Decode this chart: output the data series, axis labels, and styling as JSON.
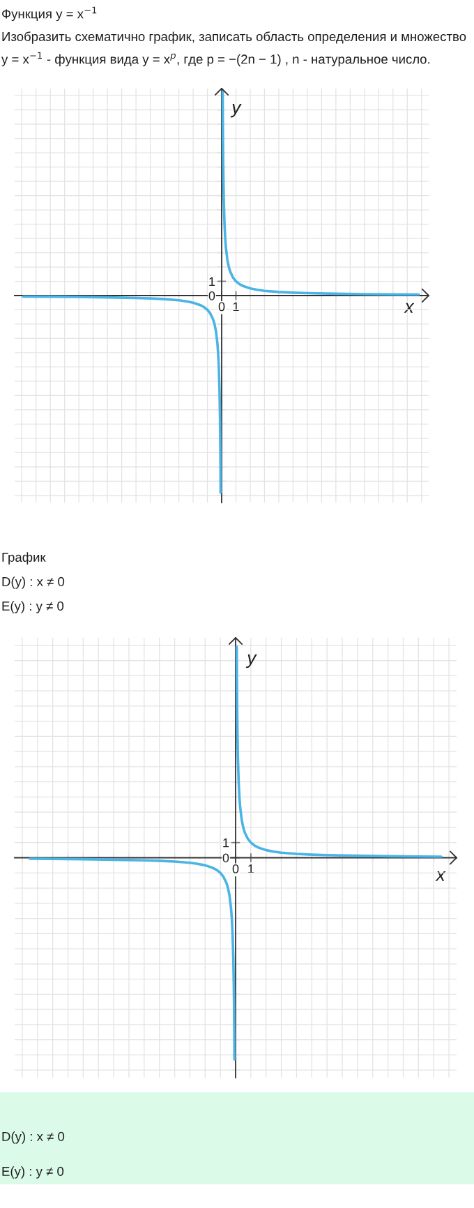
{
  "chart_data": [
    {
      "type": "line",
      "title": "Функция y = x$^{−1}$",
      "subtitle": "Изобразить схематично график, записать область определения и множество\ny = x$^{−1}$ - функция вида y = x$^{p}$, где p = −(2n − 1) , n - натуральное число.",
      "xlabel": "x",
      "ylabel": "y",
      "x": [
        -13.9,
        -12,
        -10,
        -8,
        -6,
        -5,
        -4,
        -3,
        -2.5,
        -2,
        -1.5,
        -1.25,
        -1,
        -0.8,
        -0.6,
        -0.5,
        -0.4,
        -0.3,
        -0.25,
        -0.2,
        -0.15,
        -0.12,
        -0.1,
        -0.09,
        -0.08,
        -0.072,
        0,
        0.07,
        0.08,
        0.09,
        0.1,
        0.12,
        0.15,
        0.2,
        0.25,
        0.3,
        0.4,
        0.5,
        0.6,
        0.8,
        1,
        1.25,
        1.5,
        2,
        2.5,
        3,
        4,
        5,
        6,
        8,
        10,
        12,
        13.8
      ],
      "series": [
        {
          "color": "#4ab4e6",
          "values": [
            -0.07,
            -0.08,
            -0.1,
            -0.13,
            -0.17,
            -0.2,
            -0.25,
            -0.33,
            -0.4,
            -0.5,
            -0.67,
            -0.8,
            -1,
            -1.25,
            -1.67,
            -2,
            -2.5,
            -3.33,
            -4,
            -5,
            -6.67,
            -8.33,
            -10,
            -11.11,
            -12.5,
            -13.8,
            null,
            14.3,
            12.5,
            11.11,
            10,
            8.33,
            6.67,
            5,
            4,
            3.33,
            2.5,
            2,
            1.67,
            1.25,
            1,
            0.8,
            0.67,
            0.5,
            0.4,
            0.33,
            0.25,
            0.2,
            0.17,
            0.13,
            0.1,
            0.08,
            0.07
          ]
        }
      ],
      "xlim": [
        -14.5,
        14.5
      ],
      "ylim": [
        -14.5,
        14.5
      ],
      "xticks": [
        {
          "value": -14,
          "label": null
        },
        {
          "value": -13,
          "label": null
        },
        {
          "value": -12,
          "label": null
        },
        {
          "value": -11,
          "label": null
        },
        {
          "value": -10,
          "label": null
        },
        {
          "value": -9,
          "label": null
        },
        {
          "value": -8,
          "label": null
        },
        {
          "value": -7,
          "label": null
        },
        {
          "value": -6,
          "label": null
        },
        {
          "value": -5,
          "label": null
        },
        {
          "value": -4,
          "label": null
        },
        {
          "value": -3,
          "label": null
        },
        {
          "value": -2,
          "label": null
        },
        {
          "value": -1,
          "label": null
        },
        0,
        1,
        {
          "value": 2,
          "label": null
        },
        {
          "value": 3,
          "label": null
        },
        {
          "value": 4,
          "label": null
        },
        {
          "value": 5,
          "label": null
        },
        {
          "value": 6,
          "label": null
        },
        {
          "value": 7,
          "label": null
        },
        {
          "value": 8,
          "label": null
        },
        {
          "value": 9,
          "label": null
        },
        {
          "value": 10,
          "label": null
        },
        {
          "value": 11,
          "label": null
        },
        {
          "value": 12,
          "label": null
        },
        {
          "value": 13,
          "label": null
        },
        {
          "value": 14,
          "label": null
        }
      ],
      "yticks": [
        {
          "value": -14,
          "label": null
        },
        {
          "value": -13,
          "label": null
        },
        {
          "value": -12,
          "label": null
        },
        {
          "value": -11,
          "label": null
        },
        {
          "value": -10,
          "label": null
        },
        {
          "value": -9,
          "label": null
        },
        {
          "value": -8,
          "label": null
        },
        {
          "value": -7,
          "label": null
        },
        {
          "value": -6,
          "label": null
        },
        {
          "value": -5,
          "label": null
        },
        {
          "value": -4,
          "label": null
        },
        {
          "value": -3,
          "label": null
        },
        {
          "value": -2,
          "label": null
        },
        {
          "value": -1,
          "label": null
        },
        0,
        1,
        {
          "value": 2,
          "label": null
        },
        {
          "value": 3,
          "label": null
        },
        {
          "value": 4,
          "label": null
        },
        {
          "value": 5,
          "label": null
        },
        {
          "value": 6,
          "label": null
        },
        {
          "value": 7,
          "label": null
        },
        {
          "value": 8,
          "label": null
        },
        {
          "value": 9,
          "label": null
        },
        {
          "value": 10,
          "label": null
        },
        {
          "value": 11,
          "label": null
        },
        {
          "value": 12,
          "label": null
        },
        {
          "value": 13,
          "label": null
        },
        {
          "value": 14,
          "label": null
        }
      ],
      "grid": true
    },
    {
      "type": "line",
      "title": "График",
      "subtitle": "D(y) : x ≠ 0\nE(y) : y ≠ 0",
      "xlabel": "x",
      "ylabel": "y",
      "x": [
        -13.5,
        -12,
        -10,
        -8,
        -6,
        -5,
        -4,
        -3,
        -2.5,
        -2,
        -1.5,
        -1.25,
        -1,
        -0.8,
        -0.6,
        -0.5,
        -0.4,
        -0.3,
        -0.25,
        -0.2,
        -0.15,
        -0.12,
        -0.1,
        -0.09,
        -0.08,
        -0.075,
        0,
        0.072,
        0.08,
        0.09,
        0.1,
        0.12,
        0.15,
        0.2,
        0.25,
        0.3,
        0.4,
        0.5,
        0.6,
        0.8,
        1,
        1.25,
        1.5,
        2,
        2.5,
        3,
        4,
        5,
        6,
        8,
        10,
        12,
        13.5
      ],
      "series": [
        {
          "color": "#4ab4e6",
          "values": [
            -0.07,
            -0.08,
            -0.1,
            -0.13,
            -0.17,
            -0.2,
            -0.25,
            -0.33,
            -0.4,
            -0.5,
            -0.67,
            -0.8,
            -1,
            -1.25,
            -1.67,
            -2,
            -2.5,
            -3.33,
            -4,
            -5,
            -6.67,
            -8.33,
            -10,
            -11.11,
            -12.5,
            -13.3,
            null,
            13.9,
            12.5,
            11.11,
            10,
            8.33,
            6.67,
            5,
            4,
            3.33,
            2.5,
            2,
            1.67,
            1.25,
            1,
            0.8,
            0.67,
            0.5,
            0.4,
            0.33,
            0.25,
            0.2,
            0.17,
            0.13,
            0.1,
            0.08,
            0.07
          ]
        }
      ],
      "xlim": [
        -14.5,
        14.5
      ],
      "ylim": [
        -14.5,
        14.5
      ],
      "xticks": [
        {
          "value": -14,
          "label": null
        },
        {
          "value": -13,
          "label": null
        },
        {
          "value": -12,
          "label": null
        },
        {
          "value": -11,
          "label": null
        },
        {
          "value": -10,
          "label": null
        },
        {
          "value": -9,
          "label": null
        },
        {
          "value": -8,
          "label": null
        },
        {
          "value": -7,
          "label": null
        },
        {
          "value": -6,
          "label": null
        },
        {
          "value": -5,
          "label": null
        },
        {
          "value": -4,
          "label": null
        },
        {
          "value": -3,
          "label": null
        },
        {
          "value": -2,
          "label": null
        },
        {
          "value": -1,
          "label": null
        },
        0,
        1,
        {
          "value": 2,
          "label": null
        },
        {
          "value": 3,
          "label": null
        },
        {
          "value": 4,
          "label": null
        },
        {
          "value": 5,
          "label": null
        },
        {
          "value": 6,
          "label": null
        },
        {
          "value": 7,
          "label": null
        },
        {
          "value": 8,
          "label": null
        },
        {
          "value": 9,
          "label": null
        },
        {
          "value": 10,
          "label": null
        },
        {
          "value": 11,
          "label": null
        },
        {
          "value": 12,
          "label": null
        },
        {
          "value": 13,
          "label": null
        },
        {
          "value": 14,
          "label": null
        }
      ],
      "yticks": [
        {
          "value": -14,
          "label": null
        },
        {
          "value": -13,
          "label": null
        },
        {
          "value": -12,
          "label": null
        },
        {
          "value": -11,
          "label": null
        },
        {
          "value": -10,
          "label": null
        },
        {
          "value": -9,
          "label": null
        },
        {
          "value": -8,
          "label": null
        },
        {
          "value": -7,
          "label": null
        },
        {
          "value": -6,
          "label": null
        },
        {
          "value": -5,
          "label": null
        },
        {
          "value": -4,
          "label": null
        },
        {
          "value": -3,
          "label": null
        },
        {
          "value": -2,
          "label": null
        },
        {
          "value": -1,
          "label": null
        },
        0,
        1,
        {
          "value": 2,
          "label": null
        },
        {
          "value": 3,
          "label": null
        },
        {
          "value": 4,
          "label": null
        },
        {
          "value": 5,
          "label": null
        },
        {
          "value": 6,
          "label": null
        },
        {
          "value": 7,
          "label": null
        },
        {
          "value": 8,
          "label": null
        },
        {
          "value": 9,
          "label": null
        },
        {
          "value": 10,
          "label": null
        },
        {
          "value": 11,
          "label": null
        },
        {
          "value": 12,
          "label": null
        },
        {
          "value": 13,
          "label": null
        },
        {
          "value": 14,
          "label": null
        }
      ],
      "grid": true,
      "annotations": [
        "D(y) : x ≠ 0",
        "E(y) : y ≠ 0"
      ]
    }
  ]
}
